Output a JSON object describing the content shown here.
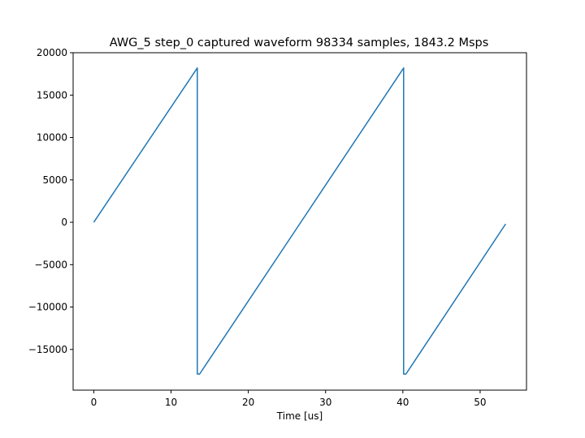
{
  "chart_data": {
    "type": "line",
    "title": "AWG_5 step_0 captured waveform 98334 samples, 1843.2 Msps",
    "xlabel": "Time [us]",
    "ylabel": "",
    "xlim": [
      -2.67,
      56.0
    ],
    "ylim": [
      -19800,
      20000
    ],
    "xticks": [
      0,
      10,
      20,
      30,
      40,
      50
    ],
    "yticks": [
      -15000,
      -10000,
      -5000,
      0,
      5000,
      10000,
      15000,
      20000
    ],
    "ytick_labels": [
      "−15000",
      "−10000",
      "−5000",
      "0",
      "5000",
      "10000",
      "15000",
      "20000"
    ],
    "grid": false,
    "series": [
      {
        "color": "#1f77b4",
        "x": [
          0.0,
          13.4,
          13.4,
          13.7,
          40.1,
          40.1,
          40.4,
          53.3
        ],
        "y": [
          0,
          18200,
          -17900,
          -17900,
          18200,
          -17900,
          -17900,
          -200
        ]
      }
    ]
  }
}
